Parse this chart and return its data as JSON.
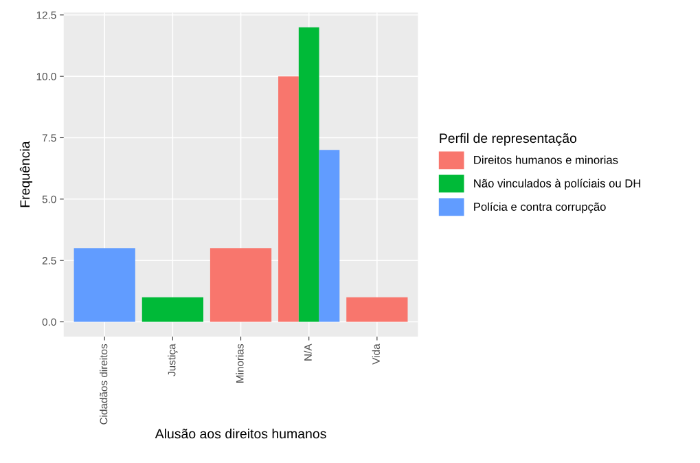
{
  "chart_data": {
    "type": "bar",
    "xlabel": "Alusão aos direitos humanos",
    "ylabel": "Frequência",
    "legend_title": "Perfil de representação",
    "categories": [
      "Cidadãos direitos",
      "Justiça",
      "Minorias",
      "N/A",
      "Vida"
    ],
    "series": [
      {
        "name": "Direitos humanos e minorias",
        "color": "#f8766d",
        "values": [
          null,
          null,
          3,
          10,
          1
        ]
      },
      {
        "name": "Não vinculados à políciais ou DH",
        "color": "#00ba38",
        "values": [
          null,
          1,
          null,
          12,
          null
        ]
      },
      {
        "name": "Polícia e contra corrupção",
        "color": "#619cff",
        "values": [
          3,
          null,
          null,
          7,
          null
        ]
      }
    ],
    "ylim": [
      -0.6,
      12.6
    ],
    "yticks": [
      {
        "value": 0,
        "label": "0.0"
      },
      {
        "value": 2.5,
        "label": "2.5"
      },
      {
        "value": 5,
        "label": "5.0"
      },
      {
        "value": 7.5,
        "label": "7.5"
      },
      {
        "value": 10,
        "label": "10.0"
      },
      {
        "value": 12.5,
        "label": "12.5"
      }
    ],
    "grid": true,
    "legend": "right"
  }
}
